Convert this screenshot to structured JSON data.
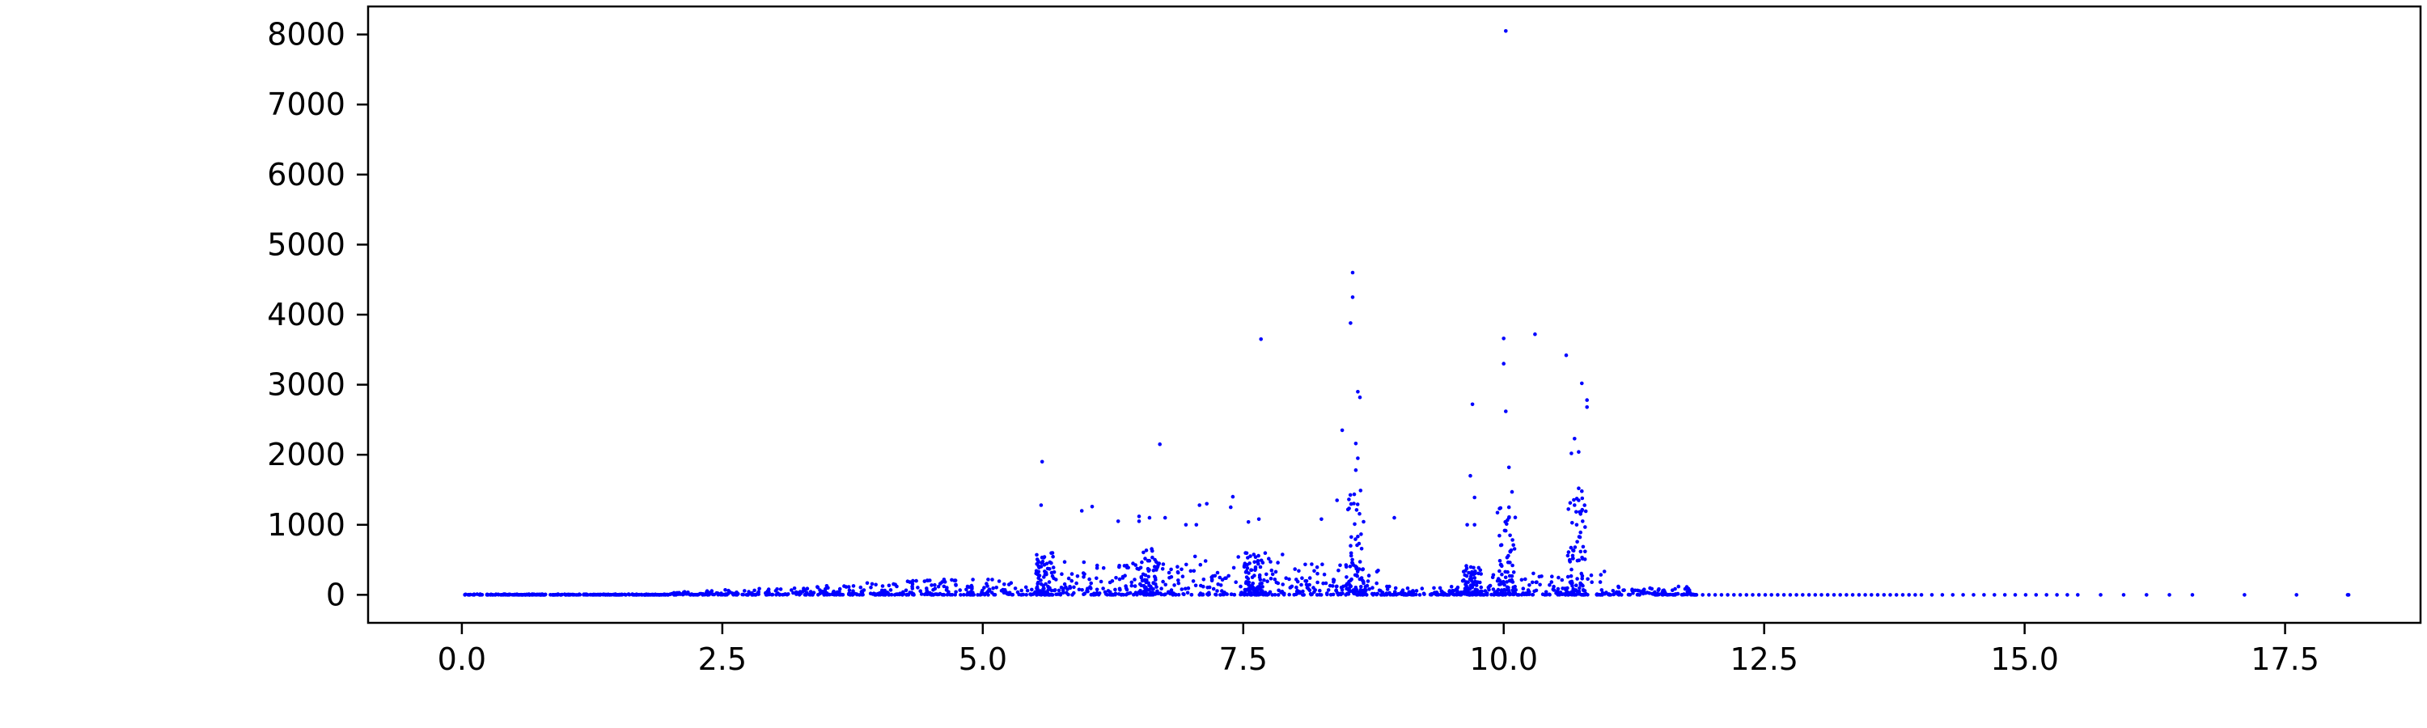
{
  "chart_data": {
    "type": "scatter",
    "title": "",
    "xlabel": "",
    "ylabel": "",
    "xlim": [
      -0.9,
      18.8
    ],
    "ylim": [
      -400,
      8400
    ],
    "xticks": [
      "0.0",
      "2.5",
      "5.0",
      "7.5",
      "10.0",
      "12.5",
      "15.0",
      "17.5"
    ],
    "yticks": [
      "0",
      "1000",
      "2000",
      "3000",
      "4000",
      "5000",
      "6000",
      "7000",
      "8000"
    ],
    "grid": false,
    "legend": "none",
    "marker_color": "#0000ff",
    "series": [
      {
        "x": [
          10.02,
          8.55,
          8.55,
          8.53,
          10.3,
          7.67,
          10.0,
          10.6,
          10.0,
          10.75,
          8.6,
          8.62,
          10.8,
          10.8,
          9.7,
          10.02,
          10.05,
          6.7,
          10.68,
          8.58,
          10.72,
          8.6,
          10.65,
          8.45,
          5.57,
          10.08,
          8.58,
          9.68,
          10.72,
          10.75,
          9.72,
          10.72,
          10.68,
          7.4,
          7.15,
          7.38,
          5.56,
          6.05,
          7.08,
          10.75,
          8.4,
          10.05,
          7.65,
          8.95,
          6.5,
          6.6,
          6.75,
          8.25,
          9.72,
          6.5,
          7.55,
          10.05,
          10.7,
          5.95,
          6.95,
          6.3,
          7.05,
          9.65
        ],
        "y": [
          8050,
          4600,
          4250,
          3880,
          3720,
          3650,
          3660,
          3420,
          3300,
          3020,
          2900,
          2820,
          2780,
          2680,
          2720,
          2620,
          1820,
          2150,
          2230,
          2160,
          2040,
          1950,
          2020,
          2350,
          1900,
          1470,
          1780,
          1700,
          1520,
          1480,
          1390,
          1350,
          1280,
          1400,
          1300,
          1250,
          1280,
          1260,
          1280,
          1200,
          1350,
          1250,
          1080,
          1100,
          1120,
          1100,
          1100,
          1080,
          1000,
          1050,
          1040,
          1100,
          1000,
          1200,
          1000,
          1050,
          1000,
          1000
        ]
      }
    ]
  }
}
